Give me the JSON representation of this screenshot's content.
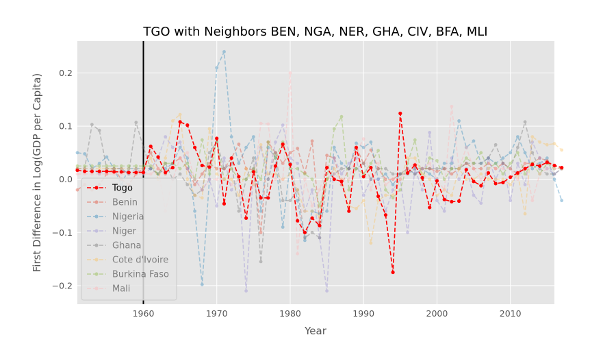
{
  "chart_data": {
    "type": "line",
    "title": "TGO with Neighbors BEN, NGA, NER, GHA, CIV, BFA, MLI",
    "xlabel": "Year",
    "ylabel": "First Difference in Log(GDP per Capita)",
    "xlim": [
      1951,
      2016
    ],
    "ylim": [
      -0.235,
      0.26
    ],
    "xticks": [
      1960,
      1970,
      1980,
      1990,
      2000,
      2010
    ],
    "yticks": [
      -0.2,
      -0.1,
      0.0,
      0.1,
      0.2
    ],
    "xtick_labels": [
      "1960",
      "1970",
      "1980",
      "1990",
      "2000",
      "2010"
    ],
    "ytick_labels": [
      "−0.2",
      "−0.1",
      "0.0",
      "0.1",
      "0.2"
    ],
    "grid": true,
    "legend_position": "lower-left",
    "vline": 1960,
    "series": [
      {
        "name": "Togo",
        "color": "#ff0000",
        "highlight": true,
        "values": [
          0.017,
          0.015,
          0.015,
          0.015,
          0.015,
          0.014,
          0.014,
          0.013,
          0.013,
          0.013,
          0.062,
          0.042,
          0.013,
          0.022,
          0.108,
          0.102,
          0.06,
          0.026,
          0.023,
          0.077,
          -0.046,
          0.04,
          0.005,
          -0.073,
          0.014,
          -0.035,
          -0.035,
          0.025,
          0.066,
          0.028,
          -0.078,
          -0.1,
          -0.073,
          -0.087,
          0.022,
          0.0,
          -0.004,
          -0.06,
          0.06,
          0.005,
          0.022,
          -0.032,
          -0.067,
          -0.175,
          0.124,
          0.012,
          0.027,
          0.003,
          -0.053,
          -0.003,
          -0.038,
          -0.042,
          -0.041,
          0.018,
          -0.004,
          -0.012,
          0.012,
          -0.008,
          -0.006,
          0.004,
          0.012,
          0.02,
          0.028,
          0.025,
          0.032,
          0.026,
          0.022
        ]
      },
      {
        "name": "Benin",
        "color": "#e24a33",
        "values": [
          -0.02,
          -0.01,
          -0.02,
          -0.01,
          0.01,
          0.02,
          0.0,
          -0.01,
          0.01,
          0.02,
          0.05,
          0.02,
          0.01,
          0.03,
          0.04,
          0.02,
          -0.01,
          0.01,
          0.03,
          0.02,
          0.02,
          0.04,
          0.066,
          0.02,
          0.018,
          -0.1,
          0.07,
          0.05,
          0.03,
          0.05,
          0.058,
          0.012,
          0.072,
          -0.08,
          0.045,
          0.04,
          -0.01,
          0.02,
          0.06,
          0.03,
          0.055,
          0.02,
          0.0,
          0.0,
          0.01,
          0.02,
          0.01,
          0.02,
          0.02,
          0.015,
          0.02,
          0.01,
          0.02,
          0.03,
          0.02,
          0.02,
          0.03,
          0.02,
          0.03,
          0.02,
          0.01,
          0.03,
          0.03,
          0.04,
          0.035,
          0.025,
          0.02
        ]
      },
      {
        "name": "Nigeria",
        "color": "#348abd",
        "values": [
          0.05,
          0.048,
          0.02,
          0.03,
          0.042,
          0.02,
          -0.01,
          0.02,
          0.02,
          0.02,
          0.02,
          0.01,
          0.02,
          0.03,
          0.06,
          0.04,
          -0.06,
          -0.198,
          0.0,
          0.21,
          0.24,
          0.08,
          0.03,
          0.06,
          0.08,
          -0.06,
          0.06,
          0.04,
          -0.09,
          0.03,
          -0.04,
          -0.115,
          -0.06,
          -0.065,
          -0.06,
          0.06,
          0.03,
          0.02,
          0.068,
          0.06,
          0.07,
          0.0,
          0.01,
          -0.01,
          0.01,
          0.02,
          0.01,
          0.02,
          0.01,
          0.0,
          0.03,
          0.03,
          0.11,
          0.06,
          0.072,
          0.03,
          0.04,
          0.03,
          0.04,
          0.05,
          0.08,
          0.05,
          0.02,
          0.03,
          0.04,
          0.0,
          -0.04
        ]
      },
      {
        "name": "Niger",
        "color": "#988ed5",
        "values": [
          0.02,
          0.02,
          0.02,
          0.01,
          0.02,
          0.02,
          0.02,
          0.01,
          0.02,
          0.01,
          0.02,
          0.04,
          0.08,
          0.06,
          0.07,
          0.02,
          0.0,
          -0.02,
          0.0,
          -0.05,
          0.04,
          -0.02,
          0.0,
          -0.21,
          0.02,
          0.06,
          0.0,
          0.07,
          0.102,
          0.04,
          0.03,
          -0.06,
          -0.02,
          -0.11,
          -0.21,
          0.04,
          0.01,
          0.03,
          0.04,
          -0.03,
          0.0,
          0.0,
          -0.06,
          -0.02,
          0.0,
          -0.1,
          0.02,
          -0.02,
          0.088,
          -0.04,
          -0.06,
          0.04,
          0.0,
          0.02,
          -0.03,
          -0.045,
          0.04,
          0.0,
          0.03,
          -0.04,
          0.03,
          -0.01,
          0.07,
          0.04,
          0.02,
          0.01,
          0.02
        ]
      },
      {
        "name": "Ghana",
        "color": "#777777",
        "values": [
          0.02,
          0.02,
          0.103,
          0.092,
          0.02,
          0.02,
          0.02,
          0.01,
          0.107,
          0.06,
          0.02,
          0.01,
          0.03,
          0.0,
          0.01,
          -0.01,
          -0.03,
          -0.02,
          0.05,
          0.07,
          0.02,
          0.03,
          -0.06,
          0.0,
          0.04,
          -0.155,
          0.0,
          0.05,
          -0.04,
          -0.04,
          -0.02,
          -0.11,
          -0.1,
          -0.11,
          0.0,
          0.01,
          0.02,
          0.02,
          0.02,
          0.03,
          0.0,
          0.02,
          0.02,
          0.01,
          0.01,
          0.01,
          0.02,
          0.02,
          0.02,
          0.02,
          0.02,
          0.02,
          0.02,
          0.03,
          0.03,
          0.03,
          0.04,
          0.065,
          0.03,
          0.02,
          0.06,
          0.108,
          0.05,
          0.02,
          0.01,
          0.01,
          0.02
        ]
      },
      {
        "name": "Cote d'Ivoire",
        "color": "#fbc15e",
        "values": [
          0.02,
          0.02,
          0.02,
          0.02,
          0.02,
          0.02,
          0.02,
          0.02,
          0.02,
          0.02,
          0.04,
          0.0,
          0.04,
          0.11,
          0.122,
          0.0,
          -0.03,
          -0.035,
          0.095,
          0.01,
          0.0,
          0.0,
          -0.03,
          0.02,
          -0.01,
          0.065,
          0.01,
          0.01,
          0.0,
          0.01,
          -0.02,
          -0.06,
          -0.06,
          -0.07,
          0.0,
          0.02,
          0.0,
          -0.05,
          -0.055,
          -0.04,
          -0.12,
          -0.04,
          -0.03,
          -0.03,
          0.0,
          0.04,
          0.04,
          0.01,
          0.0,
          -0.03,
          -0.02,
          -0.03,
          0.02,
          0.0,
          0.0,
          0.01,
          0.0,
          0.0,
          0.0,
          -0.01,
          0.01,
          -0.065,
          0.08,
          0.07,
          0.065,
          0.067,
          0.055
        ]
      },
      {
        "name": "Burkina Faso",
        "color": "#8eba42",
        "values": [
          0.025,
          0.025,
          0.025,
          0.025,
          0.025,
          0.025,
          0.025,
          0.025,
          0.025,
          0.025,
          0.025,
          0.01,
          0.03,
          0.03,
          0.02,
          0.03,
          0.0,
          0.074,
          0.01,
          0.07,
          0.0,
          0.02,
          0.0,
          0.0,
          0.02,
          0.0,
          0.07,
          0.04,
          0.07,
          0.02,
          0.02,
          0.01,
          0.0,
          -0.05,
          0.0,
          0.095,
          0.118,
          -0.02,
          0.02,
          0.01,
          0.03,
          0.054,
          -0.02,
          -0.035,
          -0.02,
          0.03,
          0.074,
          0.0,
          0.04,
          0.035,
          0.0,
          0.02,
          0.02,
          0.04,
          0.03,
          0.05,
          0.02,
          0.03,
          0.01,
          0.03,
          0.05,
          0.01,
          0.03,
          0.01,
          0.03,
          0.02,
          0.02
        ]
      },
      {
        "name": "Mali",
        "color": "#ffb5b8",
        "values": [
          0.01,
          0.01,
          0.01,
          0.01,
          0.01,
          0.01,
          0.01,
          0.01,
          0.01,
          0.01,
          0.01,
          0.02,
          -0.06,
          0.0,
          0.04,
          0.05,
          0.0,
          -0.02,
          0.0,
          0.0,
          0.0,
          -0.01,
          0.0,
          -0.04,
          -0.01,
          0.105,
          0.104,
          0.0,
          0.0,
          0.2,
          -0.14,
          0.0,
          -0.05,
          -0.02,
          0.025,
          0.01,
          0.0,
          0.0,
          0.05,
          0.076,
          -0.02,
          0.03,
          -0.01,
          0.0,
          0.0,
          0.02,
          0.03,
          0.02,
          0.03,
          0.0,
          -0.02,
          0.137,
          0.02,
          0.06,
          0.02,
          0.0,
          0.02,
          0.02,
          0.02,
          0.02,
          0.0,
          0.03,
          -0.04,
          0.01,
          0.02,
          0.02,
          0.02
        ]
      }
    ]
  }
}
